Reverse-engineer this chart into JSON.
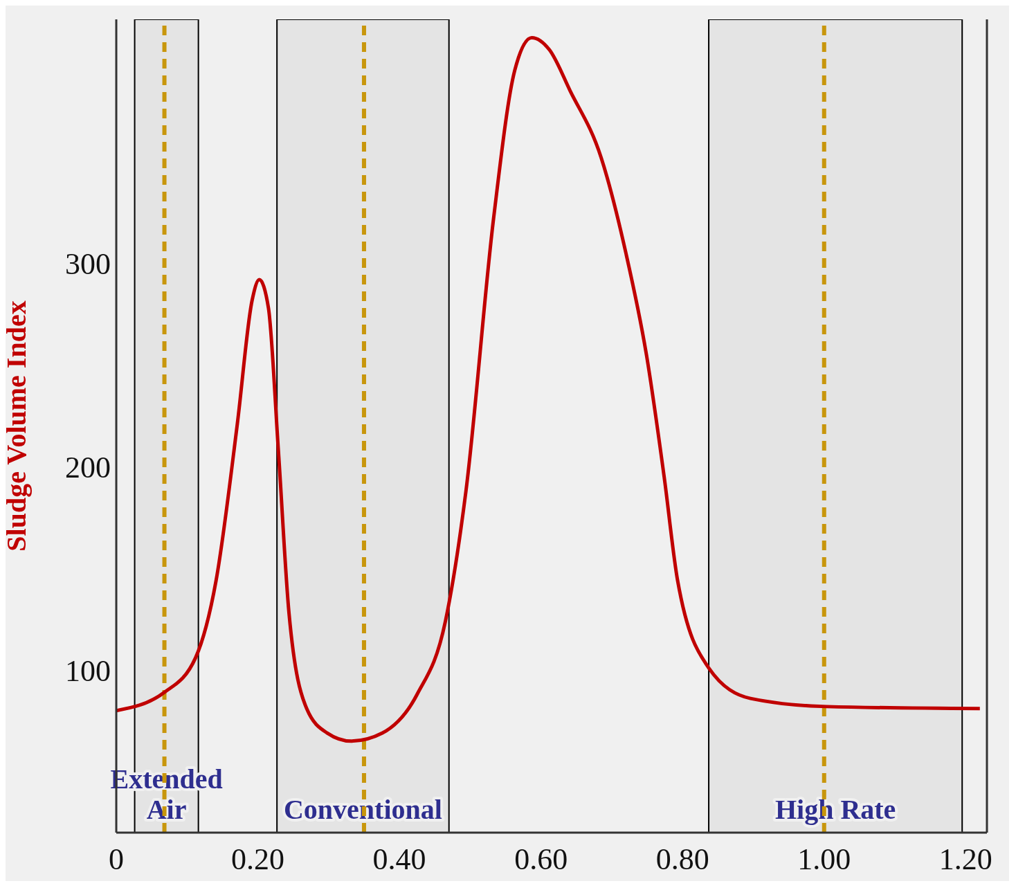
{
  "chart_data": {
    "type": "line",
    "ylabel": "Sludge Volume Index",
    "x": [
      0,
      0.068,
      0.112,
      0.141,
      0.171,
      0.192,
      0.202,
      0.215,
      0.229,
      0.244,
      0.269,
      0.298,
      0.332,
      0.376,
      0.425,
      0.465,
      0.494,
      0.533,
      0.563,
      0.587,
      0.612,
      0.641,
      0.685,
      0.72,
      0.749,
      0.774,
      0.793,
      0.837,
      0.896,
      1.004,
      1.22
    ],
    "series": [
      {
        "color": "#c00000",
        "values": [
          80,
          89,
          106,
          144,
          221,
          282,
          292,
          278,
          208,
          128,
          81,
          69,
          65,
          69,
          88,
          124,
          188,
          322,
          395,
          411,
          405,
          385,
          352,
          305,
          255,
          195,
          144,
          101,
          86,
          82,
          81
        ]
      }
    ],
    "xlim": [
      0,
      1.23
    ],
    "xticks": [
      0,
      {
        "value": 0.2,
        "label": "0.20"
      },
      {
        "value": 0.4,
        "label": "0.40"
      },
      {
        "value": 0.6,
        "label": "0.60"
      },
      {
        "value": 0.8,
        "label": "0.80"
      },
      {
        "value": 1,
        "label": "1.00"
      },
      {
        "value": 1.2,
        "label": "1.20"
      }
    ],
    "ylim": [
      20,
      420
    ],
    "yticks": [
      100,
      200,
      300
    ],
    "bands": [
      {
        "axis": "x",
        "from": 0.026,
        "to": 0.116,
        "label": "Extended Air",
        "color": "#e4e4e4"
      },
      {
        "axis": "x",
        "from": 0.227,
        "to": 0.47,
        "label": "Conventional",
        "color": "#e4e4e4"
      },
      {
        "axis": "x",
        "from": 0.837,
        "to": 1.195,
        "label": "High Rate",
        "color": "#e4e4e4"
      }
    ],
    "ref_lines": [
      {
        "axis": "x",
        "value": 0.068,
        "color": "#c8960c",
        "line_style": "dashed"
      },
      {
        "axis": "x",
        "value": 0.35,
        "color": "#c8960c",
        "line_style": "dashed"
      },
      {
        "axis": "x",
        "value": 1.0,
        "color": "#c8960c",
        "line_style": "dashed"
      }
    ],
    "grid": false,
    "legend": false,
    "marker": "none",
    "line_style": "solid"
  }
}
